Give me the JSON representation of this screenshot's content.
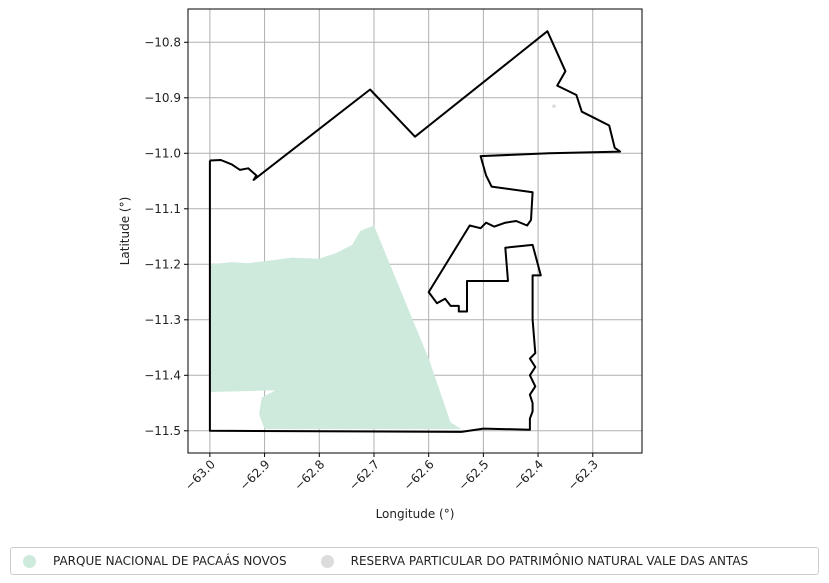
{
  "chart_data": {
    "type": "map",
    "xlabel": "Longitude (°)",
    "ylabel": "Latitude (°)",
    "xlim": [
      -63.04,
      -62.21
    ],
    "ylim": [
      -11.54,
      -10.74
    ],
    "xticks": [
      -63.0,
      -62.9,
      -62.8,
      -62.7,
      -62.6,
      -62.5,
      -62.4,
      -62.3
    ],
    "xtick_labels": [
      "−63.0",
      "−62.9",
      "−62.8",
      "−62.7",
      "−62.6",
      "−62.5",
      "−62.4",
      "−62.3"
    ],
    "yticks": [
      -10.8,
      -10.9,
      -11.0,
      -11.1,
      -11.2,
      -11.3,
      -11.4,
      -11.5
    ],
    "ytick_labels": [
      "−10.8",
      "−10.9",
      "−11.0",
      "−11.1",
      "−11.2",
      "−11.3",
      "−11.4",
      "−11.5"
    ],
    "grid": true,
    "legend_position": "bottom",
    "legend": [
      {
        "label": "PARQUE NACIONAL DE PACAÁS NOVOS",
        "color": "#cdeadc"
      },
      {
        "label": "RESERVA PARTICULAR DO PATRIMÔNIO NATURAL VALE DAS ANTAS",
        "color": "#dcdcdc"
      }
    ],
    "areas": [
      {
        "name": "PARQUE NACIONAL DE PACAÁS NOVOS",
        "fill": "#cdeadc",
        "coords": [
          [
            -63.0,
            -11.2
          ],
          [
            -62.96,
            -11.196
          ],
          [
            -62.93,
            -11.198
          ],
          [
            -62.88,
            -11.192
          ],
          [
            -62.85,
            -11.188
          ],
          [
            -62.8,
            -11.19
          ],
          [
            -62.77,
            -11.18
          ],
          [
            -62.74,
            -11.165
          ],
          [
            -62.725,
            -11.14
          ],
          [
            -62.7,
            -11.13
          ],
          [
            -62.65,
            -11.25
          ],
          [
            -62.6,
            -11.37
          ],
          [
            -62.56,
            -11.485
          ],
          [
            -62.54,
            -11.497
          ],
          [
            -62.9,
            -11.497
          ],
          [
            -62.91,
            -11.47
          ],
          [
            -62.905,
            -11.44
          ],
          [
            -62.88,
            -11.427
          ],
          [
            -63.0,
            -11.43
          ]
        ]
      },
      {
        "name": "RESERVA PARTICULAR DO PATRIMÔNIO NATURAL VALE DAS ANTAS",
        "fill": "#dcdcdc",
        "coords": [
          [
            -62.371,
            -10.915
          ]
        ]
      }
    ],
    "boundaries": [
      {
        "stroke": "#000000",
        "coords": [
          [
            -63.0,
            -11.013
          ],
          [
            -62.98,
            -11.012
          ],
          [
            -62.96,
            -11.02
          ],
          [
            -62.945,
            -11.03
          ],
          [
            -62.93,
            -11.027
          ],
          [
            -62.915,
            -11.04
          ],
          [
            -62.92,
            -11.048
          ],
          [
            -62.707,
            -10.885
          ],
          [
            -62.625,
            -10.97
          ],
          [
            -62.383,
            -10.78
          ],
          [
            -62.35,
            -10.852
          ],
          [
            -62.365,
            -10.878
          ],
          [
            -62.33,
            -10.895
          ],
          [
            -62.325,
            -10.91
          ],
          [
            -62.32,
            -10.925
          ],
          [
            -62.3,
            -10.935
          ],
          [
            -62.27,
            -10.95
          ],
          [
            -62.26,
            -10.99
          ],
          [
            -62.25,
            -10.997
          ],
          [
            -62.38,
            -11.0
          ],
          [
            -62.505,
            -11.005
          ],
          [
            -62.495,
            -11.04
          ],
          [
            -62.485,
            -11.06
          ],
          [
            -62.41,
            -11.07
          ],
          [
            -62.413,
            -11.12
          ],
          [
            -62.42,
            -11.13
          ],
          [
            -62.44,
            -11.122
          ],
          [
            -62.46,
            -11.125
          ],
          [
            -62.48,
            -11.132
          ],
          [
            -62.495,
            -11.125
          ],
          [
            -62.505,
            -11.135
          ],
          [
            -62.525,
            -11.13
          ],
          [
            -62.6,
            -11.25
          ],
          [
            -62.585,
            -11.27
          ],
          [
            -62.57,
            -11.262
          ],
          [
            -62.56,
            -11.275
          ],
          [
            -62.545,
            -11.275
          ],
          [
            -62.545,
            -11.285
          ],
          [
            -62.53,
            -11.285
          ],
          [
            -62.53,
            -11.23
          ],
          [
            -62.455,
            -11.23
          ],
          [
            -62.46,
            -11.17
          ],
          [
            -62.41,
            -11.165
          ],
          [
            -62.395,
            -11.22
          ],
          [
            -62.41,
            -11.22
          ],
          [
            -62.41,
            -11.3
          ],
          [
            -62.405,
            -11.36
          ],
          [
            -62.415,
            -11.37
          ],
          [
            -62.405,
            -11.385
          ],
          [
            -62.415,
            -11.4
          ],
          [
            -62.405,
            -11.42
          ],
          [
            -62.415,
            -11.435
          ],
          [
            -62.41,
            -11.45
          ],
          [
            -62.41,
            -11.465
          ],
          [
            -62.415,
            -11.478
          ],
          [
            -62.415,
            -11.498
          ],
          [
            -62.5,
            -11.496
          ],
          [
            -62.54,
            -11.502
          ],
          [
            -63.0,
            -11.5
          ],
          [
            -63.0,
            -11.013
          ]
        ]
      }
    ]
  }
}
